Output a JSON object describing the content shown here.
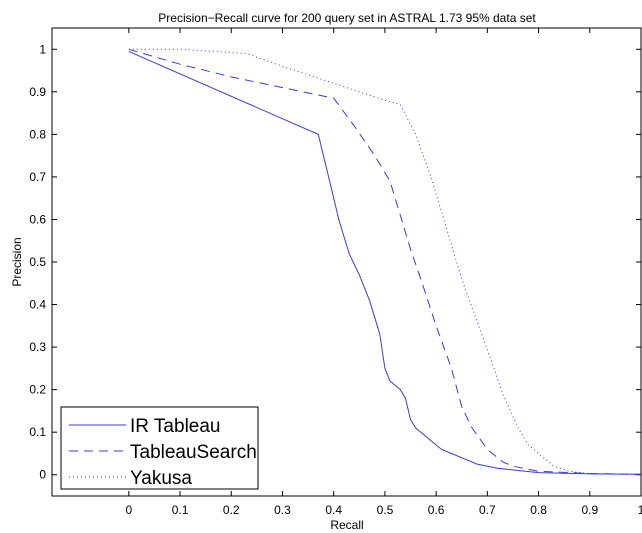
{
  "chart_data": {
    "type": "line",
    "title": "Precision−Recall curve for 200 query set in ASTRAL 1.73 95% data set",
    "xlabel": "Recall",
    "ylabel": "Precision",
    "xlim": [
      -0.15,
      1.0
    ],
    "ylim": [
      -0.05,
      1.05
    ],
    "xticks": [
      0,
      0.1,
      0.2,
      0.3,
      0.4,
      0.5,
      0.6,
      0.7,
      0.8,
      0.9,
      1
    ],
    "xtick_labels": [
      "0",
      "0.1",
      "0.2",
      "0.3",
      "0.4",
      "0.5",
      "0.6",
      "0.7",
      "0.8",
      "0.9",
      "1"
    ],
    "yticks": [
      0,
      0.1,
      0.2,
      0.3,
      0.4,
      0.5,
      0.6,
      0.7,
      0.8,
      0.9,
      1
    ],
    "ytick_labels": [
      "0",
      "0.1",
      "0.2",
      "0.3",
      "0.4",
      "0.5",
      "0.6",
      "0.7",
      "0.8",
      "0.9",
      "1"
    ],
    "grid": false,
    "legend_position": "bottom-left",
    "series": [
      {
        "name": "IR Tableau",
        "color": "#3a3ae6",
        "style": "solid",
        "x": [
          0,
          0.37,
          0.39,
          0.41,
          0.43,
          0.45,
          0.47,
          0.48,
          0.49,
          0.5,
          0.51,
          0.53,
          0.54,
          0.55,
          0.56,
          0.57,
          0.58,
          0.59,
          0.61,
          0.63,
          0.65,
          0.68,
          0.72,
          0.76,
          0.8,
          0.9,
          1.0
        ],
        "y": [
          0.995,
          0.8,
          0.7,
          0.6,
          0.52,
          0.47,
          0.41,
          0.37,
          0.33,
          0.25,
          0.22,
          0.2,
          0.18,
          0.13,
          0.11,
          0.1,
          0.09,
          0.08,
          0.06,
          0.05,
          0.04,
          0.025,
          0.015,
          0.01,
          0.005,
          0.002,
          0.001
        ]
      },
      {
        "name": "TableauSearch",
        "color": "#3a3ae6",
        "style": "dashed",
        "x": [
          0,
          0.1,
          0.2,
          0.3,
          0.4,
          0.44,
          0.48,
          0.51,
          0.53,
          0.55,
          0.57,
          0.6,
          0.63,
          0.65,
          0.67,
          0.7,
          0.73,
          0.75,
          0.8,
          0.9,
          1.0
        ],
        "y": [
          1.0,
          0.965,
          0.935,
          0.91,
          0.885,
          0.82,
          0.75,
          0.69,
          0.61,
          0.53,
          0.46,
          0.35,
          0.25,
          0.16,
          0.11,
          0.06,
          0.03,
          0.02,
          0.008,
          0.003,
          0.001
        ]
      },
      {
        "name": "Yakusa",
        "color": "#3a3ae6",
        "style": "dotted",
        "x": [
          0,
          0.1,
          0.23,
          0.3,
          0.4,
          0.45,
          0.5,
          0.53,
          0.56,
          0.59,
          0.62,
          0.65,
          0.68,
          0.71,
          0.73,
          0.76,
          0.78,
          0.8,
          0.83,
          0.86,
          0.9,
          1.0
        ],
        "y": [
          1.0,
          1.0,
          0.99,
          0.96,
          0.92,
          0.9,
          0.88,
          0.87,
          0.8,
          0.7,
          0.58,
          0.46,
          0.36,
          0.26,
          0.19,
          0.11,
          0.07,
          0.05,
          0.02,
          0.008,
          0.003,
          0.001
        ]
      }
    ]
  }
}
